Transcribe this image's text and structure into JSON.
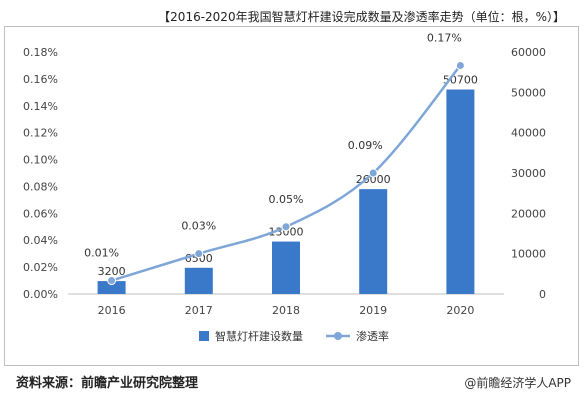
{
  "chart_data": {
    "type": "bar",
    "title": "【2016-2020年我国智慧灯杆建设完成数量及渗透率走势（单位：根，%）】",
    "categories": [
      "2016",
      "2017",
      "2018",
      "2019",
      "2020"
    ],
    "series": [
      {
        "name": "智慧灯杆建设数量",
        "type": "bar",
        "axis": "right",
        "values": [
          3200,
          6500,
          13000,
          26000,
          50700
        ],
        "labels": [
          "3200",
          "6500",
          "13000",
          "26000",
          "50700"
        ],
        "color": "#3a78c9"
      },
      {
        "name": "渗透率",
        "type": "line",
        "axis": "left",
        "values": [
          0.01,
          0.03,
          0.05,
          0.09,
          0.17
        ],
        "labels": [
          "0.01%",
          "0.03%",
          "0.05%",
          "0.09%",
          "0.17%"
        ],
        "color": "#7ea6d8"
      }
    ],
    "left_axis": {
      "ylim": [
        0,
        0.18
      ],
      "ticks": [
        "0.00%",
        "0.02%",
        "0.04%",
        "0.06%",
        "0.08%",
        "0.10%",
        "0.12%",
        "0.14%",
        "0.16%",
        "0.18%"
      ]
    },
    "right_axis": {
      "ylim": [
        0,
        60000
      ],
      "ticks": [
        "0",
        "10000",
        "20000",
        "30000",
        "40000",
        "50000",
        "60000"
      ]
    },
    "legend": "bottom",
    "grid": false
  },
  "footer": {
    "source": "资料来源：前瞻产业研究院整理",
    "brand": "@前瞻经济学人APP"
  }
}
